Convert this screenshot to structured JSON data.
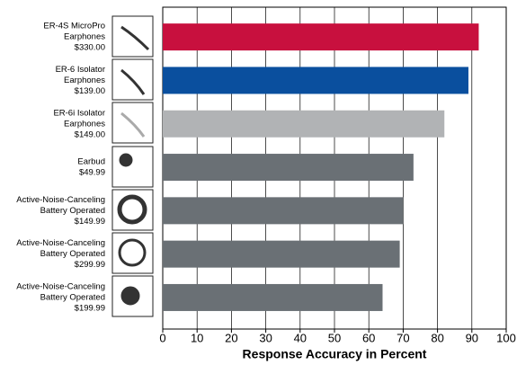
{
  "chart_data": {
    "type": "bar",
    "orientation": "horizontal",
    "x_label": "Response Accuracy in Percent",
    "categories": [
      [
        "ER-4S MicroPro",
        "Earphones",
        "$330.00"
      ],
      [
        "ER-6 Isolator",
        "Earphones",
        "$139.00"
      ],
      [
        "ER-6i Isolator",
        "Earphones",
        "$149.00"
      ],
      [
        "Earbud",
        "$49.99"
      ],
      [
        "Active-Noise-Canceling",
        "Battery Operated",
        "$149.99"
      ],
      [
        "Active-Noise-Canceling",
        "Battery Operated",
        "$299.99"
      ],
      [
        "Active-Noise-Canceling",
        "Battery Operated",
        "$199.99"
      ]
    ],
    "values": [
      92,
      89,
      82,
      73,
      70,
      69,
      64
    ],
    "colors": [
      "#c8103e",
      "#0a4f9e",
      "#b1b3b5",
      "#6a7075",
      "#6a7075",
      "#6a7075",
      "#6a7075"
    ],
    "xlim": [
      0,
      100
    ],
    "xticks": [
      0,
      10,
      20,
      30,
      40,
      50,
      60,
      70,
      80,
      90,
      100
    ],
    "grid": true
  }
}
